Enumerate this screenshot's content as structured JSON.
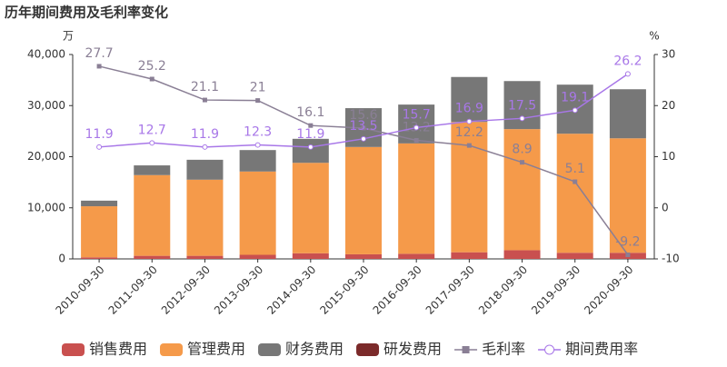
{
  "chart_data": {
    "type": "bar",
    "title": "历年期间费用及毛利率变化",
    "y_unit": "万",
    "y2_unit": "%",
    "categories": [
      "2010-09-30",
      "2011-09-30",
      "2012-09-30",
      "2013-09-30",
      "2014-09-30",
      "2015-09-30",
      "2016-09-30",
      "2017-09-30",
      "2018-09-30",
      "2019-09-30",
      "2020-09-30"
    ],
    "series": [
      {
        "name": "销售费用",
        "type": "bar",
        "color": "#c9504f",
        "values": [
          300,
          600,
          600,
          800,
          1100,
          900,
          1000,
          1300,
          1700,
          1200,
          1200
        ]
      },
      {
        "name": "管理费用",
        "type": "bar",
        "color": "#f59a4a",
        "values": [
          10000,
          15800,
          14900,
          16300,
          17700,
          21000,
          21600,
          25500,
          23700,
          23300,
          22400
        ]
      },
      {
        "name": "财务费用",
        "type": "bar",
        "color": "#777777",
        "values": [
          1100,
          1900,
          3900,
          4200,
          4700,
          7600,
          7600,
          8800,
          9400,
          9600,
          9600
        ]
      },
      {
        "name": "研发费用",
        "type": "bar",
        "color": "#7b2a2a",
        "values": [
          0,
          0,
          0,
          0,
          0,
          0,
          0,
          0,
          0,
          0,
          0
        ]
      },
      {
        "name": "毛利率",
        "type": "line",
        "axis": "y2",
        "color": "#8a7f95",
        "marker": "square",
        "values": [
          27.7,
          25.2,
          21.1,
          21,
          16.1,
          15.6,
          13.2,
          12.2,
          8.9,
          5.1,
          -9.2
        ]
      },
      {
        "name": "期间费用率",
        "type": "line",
        "axis": "y2",
        "color": "#a877e8",
        "marker": "circle",
        "values": [
          11.9,
          12.7,
          11.9,
          12.3,
          11.9,
          13.5,
          15.7,
          16.9,
          17.5,
          19.1,
          26.2
        ]
      }
    ],
    "ylim": [
      0,
      40000
    ],
    "yticks": [
      0,
      {
        "value": 10000,
        "label": "10,000"
      },
      {
        "value": 20000,
        "label": "20,000"
      },
      {
        "value": 30000,
        "label": "30,000"
      },
      {
        "value": 40000,
        "label": "40,000"
      }
    ],
    "y2lim": [
      -10,
      30
    ],
    "y2ticks": [
      -10,
      0,
      10,
      20,
      30
    ]
  }
}
